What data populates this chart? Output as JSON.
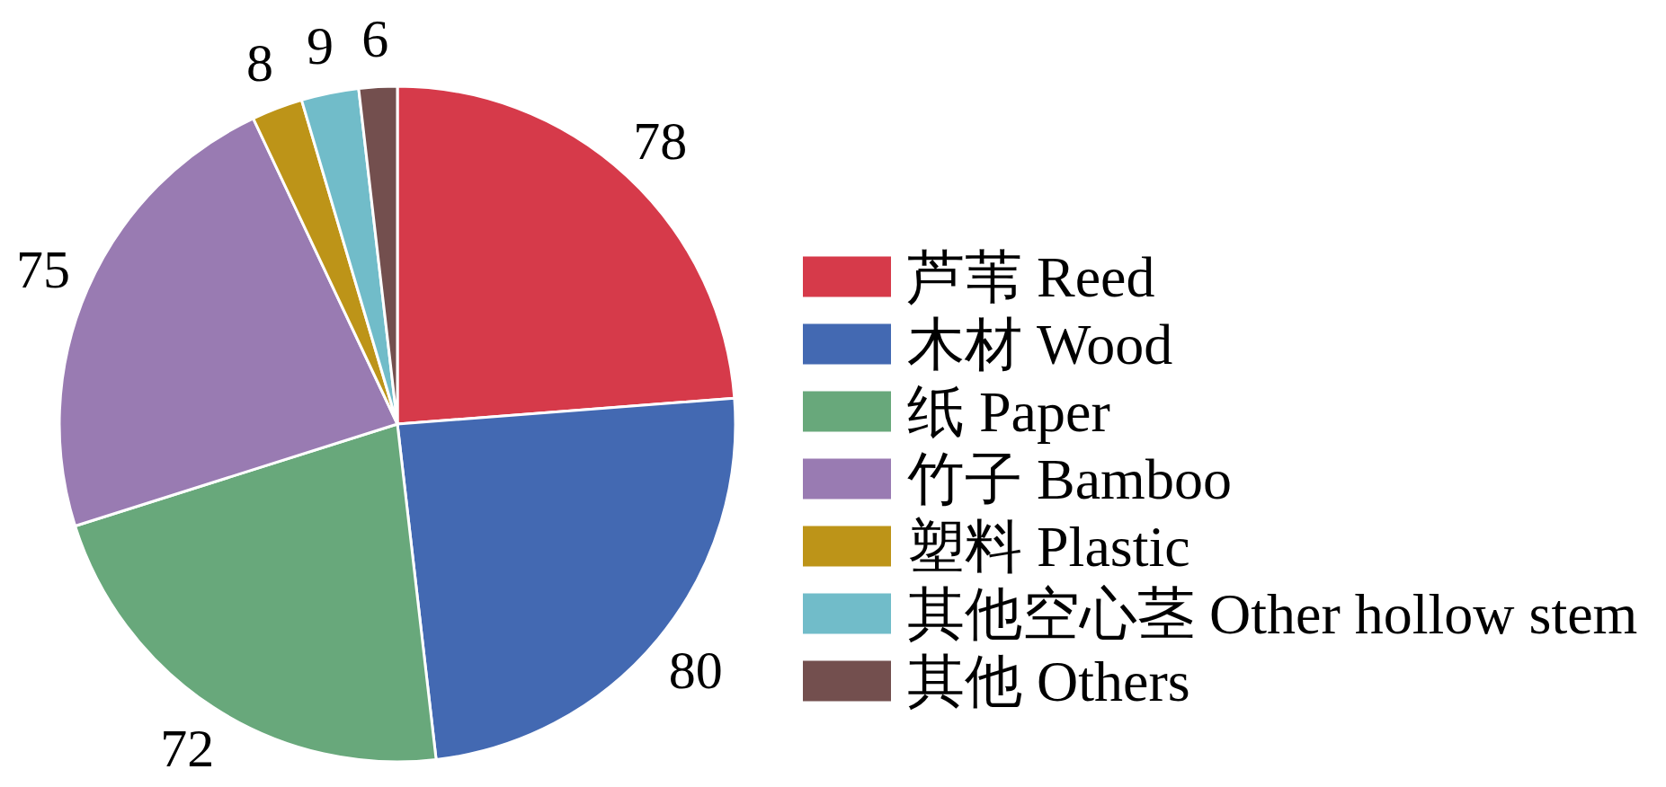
{
  "chart_data": {
    "type": "pie",
    "categories": [
      "芦苇 Reed",
      "木材 Wood",
      "纸 Paper",
      "竹子 Bamboo",
      "塑料 Plastic",
      "其他空心茎 Other hollow stem",
      "其他 Others"
    ],
    "values": [
      78,
      80,
      72,
      75,
      8,
      9,
      6
    ],
    "colors": [
      "#d63a4a",
      "#4369b2",
      "#68a87b",
      "#997bb2",
      "#bd9418",
      "#71bcc9",
      "#734f4e"
    ],
    "data_labels": true,
    "legend": "right"
  }
}
